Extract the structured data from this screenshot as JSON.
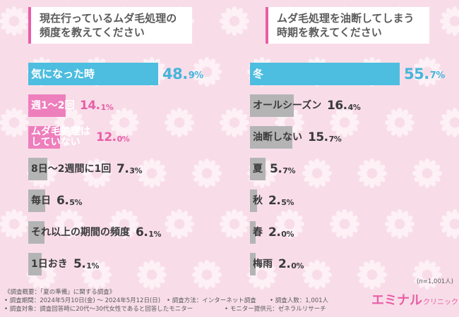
{
  "charts": [
    {
      "question": "現在行っているムダ毛処理の\n頻度を教えてください",
      "chart_data": {
        "type": "bar",
        "title": "現在行っているムダ毛処理の頻度を教えてください",
        "unit": "%",
        "xlim": [
          0,
          60
        ],
        "categories": [
          "気になった時",
          "週1〜2回",
          "ムダ毛処理は\nしていない",
          "8日〜2週間に1回",
          "毎日",
          "それ以上の期間の頻度",
          "1日おき"
        ],
        "values": [
          48.9,
          14.1,
          12.0,
          7.3,
          6.5,
          6.1,
          5.1
        ],
        "value_labels": [
          [
            "48.",
            "9%"
          ],
          [
            "14.",
            "1%"
          ],
          [
            "12.",
            "0%"
          ],
          [
            "7.",
            "3%"
          ],
          [
            "6.",
            "5%"
          ],
          [
            "6.",
            "1%"
          ],
          [
            "5.",
            "1%"
          ]
        ],
        "colors": [
          "#4dbde0",
          "#ee7fbd",
          "#ee7fbd",
          "#b4b4b4",
          "#b4b4b4",
          "#b4b4b4",
          "#b4b4b4"
        ]
      }
    },
    {
      "question": "ムダ毛処理を油断してしまう\n時期を教えてください",
      "chart_data": {
        "type": "bar",
        "title": "ムダ毛処理を油断してしまう時期を教えてください",
        "unit": "%",
        "xlim": [
          0,
          60
        ],
        "categories": [
          "冬",
          "オールシーズン",
          "油断しない",
          "夏",
          "秋",
          "春",
          "梅雨"
        ],
        "values": [
          55.7,
          16.4,
          15.7,
          5.7,
          2.5,
          2.0,
          2.0
        ],
        "value_labels": [
          [
            "55.",
            "7%"
          ],
          [
            "16.",
            "4%"
          ],
          [
            "15.",
            "7%"
          ],
          [
            "5.",
            "7%"
          ],
          [
            "2.",
            "5%"
          ],
          [
            "2.",
            "0%"
          ],
          [
            "2.",
            "0%"
          ]
        ],
        "colors": [
          "#4dbde0",
          "#b4b4b4",
          "#b4b4b4",
          "#b4b4b4",
          "#b4b4b4",
          "#b4b4b4",
          "#b4b4b4"
        ]
      }
    }
  ],
  "sample_size": "(n=1,001人)",
  "footnotes": {
    "overview": "《調査概要：「夏の準備」に関する調査》",
    "period": "• 調査期間：2024年5月10日(金) 〜 2024年5月12日(日)",
    "method": "• 調査方法：インターネット調査",
    "count": "• 調査人数：1,001人",
    "target": "• 調査対象：調査回答時に20代〜30代女性であると回答したモニター",
    "provider": "• モニター提供元：ゼネラルリサーチ"
  },
  "logo": {
    "main": "エミナル",
    "sub": "クリニック"
  }
}
